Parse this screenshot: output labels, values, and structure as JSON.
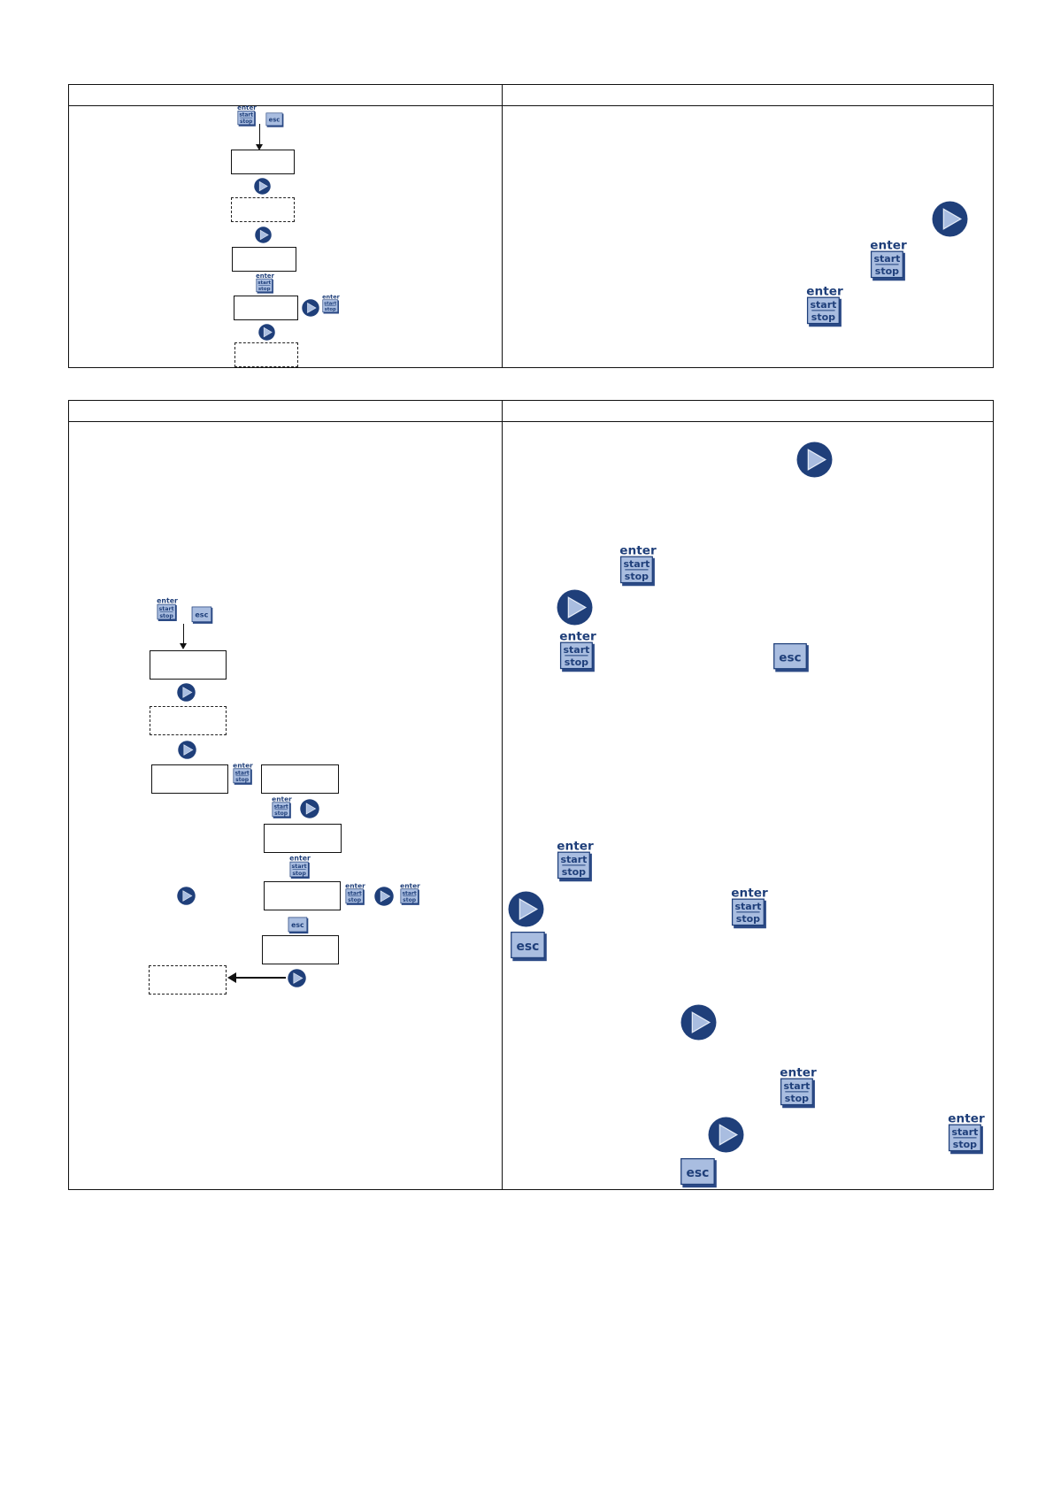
{
  "buttons": {
    "enter_label": "enter",
    "start_label": "start",
    "stop_label": "stop",
    "esc_label": "esc"
  },
  "icons": {
    "arrow": "next-arrow-icon",
    "enter_start_stop": "enter-start-stop-icon",
    "esc": "esc-icon"
  },
  "colors": {
    "navy": "#1f3f7a",
    "key_fill": "#a9bde0",
    "key_shadow": "#2c4a86"
  }
}
